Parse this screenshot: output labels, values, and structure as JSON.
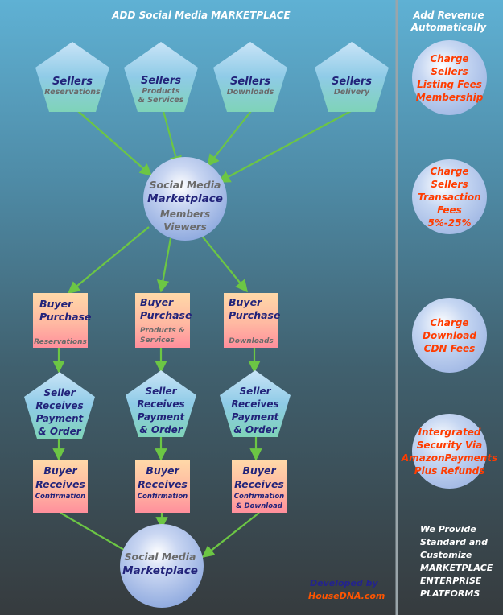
{
  "header_left": "ADD Social Media MARKETPLACE",
  "header_right": "Add Revenue Automatically",
  "sellers": [
    {
      "title": "Sellers",
      "sub": "Reservations"
    },
    {
      "title": "Sellers",
      "sub": "Products\n& Services"
    },
    {
      "title": "Sellers",
      "sub": "Downloads"
    },
    {
      "title": "Sellers",
      "sub": "Delivery"
    }
  ],
  "hub_top": {
    "title1": "Social Media",
    "title2": "Marketplace",
    "sub1": "Members",
    "sub2": "Viewers"
  },
  "purchases": [
    {
      "title1": "Buyer",
      "title2": "Purchase",
      "sub": "Reservations"
    },
    {
      "title1": "Buyer",
      "title2": "Purchase",
      "sub": "Products &\nServices"
    },
    {
      "title1": "Buyer",
      "title2": "Purchase",
      "sub": "Downloads"
    }
  ],
  "seller_receives": {
    "line1": "Seller",
    "line2": "Receives",
    "line3": "Payment",
    "line4": "& Order"
  },
  "buyer_receives": [
    {
      "title1": "Buyer",
      "title2": "Receives",
      "sub": "Confirmation"
    },
    {
      "title1": "Buyer",
      "title2": "Receives",
      "sub": "Confirmation"
    },
    {
      "title1": "Buyer",
      "title2": "Receives",
      "sub": "Confirmation\n& Download"
    }
  ],
  "hub_bottom": {
    "title1": "Social Media",
    "title2": "Marketplace"
  },
  "revenue": [
    "Charge\nSellers\nListing Fees\nMembership",
    "Charge\nSellers\nTransaction\nFees\n5%-25%",
    "Charge\nDownload\nCDN Fees",
    "Intergrated\nSecurity Via\nAmazonPayments\nPlus Refunds"
  ],
  "provide": "We Provide\nStandard and\nCustomize\nMARKETPLACE\nENTERPRISE\nPLATFORMS",
  "developed_by": "Developed by",
  "company": "HouseDNA.com",
  "colors": {
    "arrow": "#6cc644",
    "navy": "#22237a",
    "gray_text": "#6a6a6a",
    "orange": "#ff3c00"
  }
}
